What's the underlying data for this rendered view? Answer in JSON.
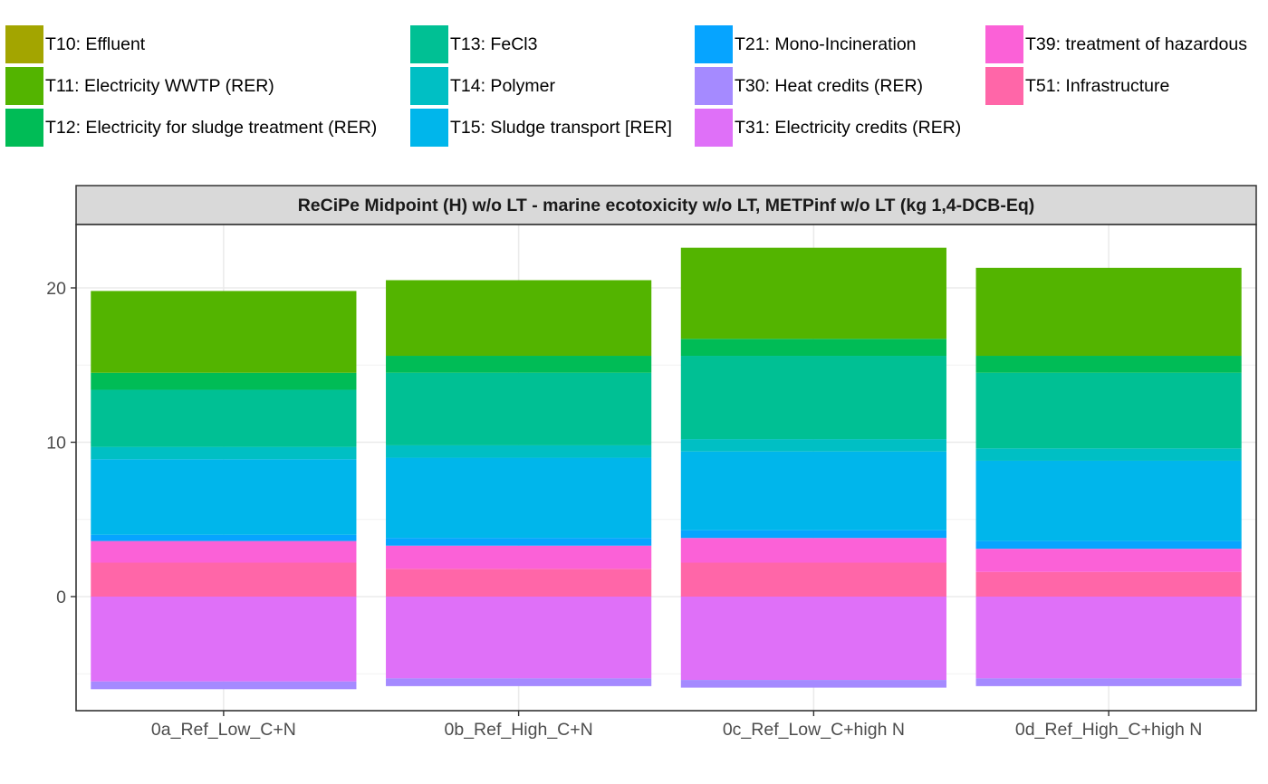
{
  "legend": {
    "items": [
      {
        "label": "T10: Effluent",
        "color": "#A3A500"
      },
      {
        "label": "T11: Electricity WWTP (RER)",
        "color": "#53B400"
      },
      {
        "label": "T12: Electricity for sludge treatment (RER)",
        "color": "#00BC56"
      },
      {
        "label": "T13: FeCl3",
        "color": "#00C094"
      },
      {
        "label": "T14: Polymer",
        "color": "#00BFC4"
      },
      {
        "label": "T15: Sludge transport [RER]",
        "color": "#00B6EB"
      },
      {
        "label": "T21: Mono-Incineration",
        "color": "#06A4FF"
      },
      {
        "label": "T30: Heat credits (RER)",
        "color": "#A58AFF"
      },
      {
        "label": "T31: Electricity credits (RER)",
        "color": "#DF70F8"
      },
      {
        "label": "T39: treatment of hazardous",
        "color": "#FB61D7"
      },
      {
        "label": "T51: Infrastructure",
        "color": "#FF66A8"
      }
    ]
  },
  "chart_data": {
    "type": "bar",
    "stacked": true,
    "title": "ReCiPe Midpoint (H) w/o LT - marine ecotoxicity w/o LT, METPinf w/o LT (kg 1,4-DCB-Eq)",
    "xlabel": "",
    "ylabel": "",
    "ylim": [
      -6.8,
      24.2
    ],
    "yticks": [
      0,
      10,
      20
    ],
    "grid": true,
    "legend_position": "top",
    "categories": [
      "0a_Ref_Low_C+N",
      "0b_Ref_High_C+N",
      "0c_Ref_Low_C+high N",
      "0d_Ref_High_C+high N"
    ],
    "series": [
      {
        "name": "T51: Infrastructure",
        "values": [
          2.2,
          1.8,
          2.2,
          1.6
        ]
      },
      {
        "name": "T39: treatment of hazardous",
        "values": [
          1.4,
          1.5,
          1.6,
          1.5
        ]
      },
      {
        "name": "T21: Mono-Incineration",
        "values": [
          0.4,
          0.5,
          0.5,
          0.5
        ]
      },
      {
        "name": "T15: Sludge transport [RER]",
        "values": [
          4.9,
          5.2,
          5.1,
          5.2
        ]
      },
      {
        "name": "T14: Polymer",
        "values": [
          0.8,
          0.8,
          0.8,
          0.8
        ]
      },
      {
        "name": "T13: FeCl3",
        "values": [
          3.7,
          4.7,
          5.4,
          4.9
        ]
      },
      {
        "name": "T12: Electricity for sludge treatment (RER)",
        "values": [
          1.1,
          1.1,
          1.1,
          1.1
        ]
      },
      {
        "name": "T11: Electricity WWTP (RER)",
        "values": [
          5.3,
          4.9,
          5.9,
          5.7
        ]
      },
      {
        "name": "T10: Effluent",
        "values": [
          0.0,
          0.0,
          0.0,
          0.0
        ]
      },
      {
        "name": "T31: Electricity credits (RER)",
        "values": [
          -5.5,
          -5.3,
          -5.4,
          -5.3
        ]
      },
      {
        "name": "T30: Heat credits (RER)",
        "values": [
          -0.5,
          -0.5,
          -0.5,
          -0.5
        ]
      }
    ]
  }
}
